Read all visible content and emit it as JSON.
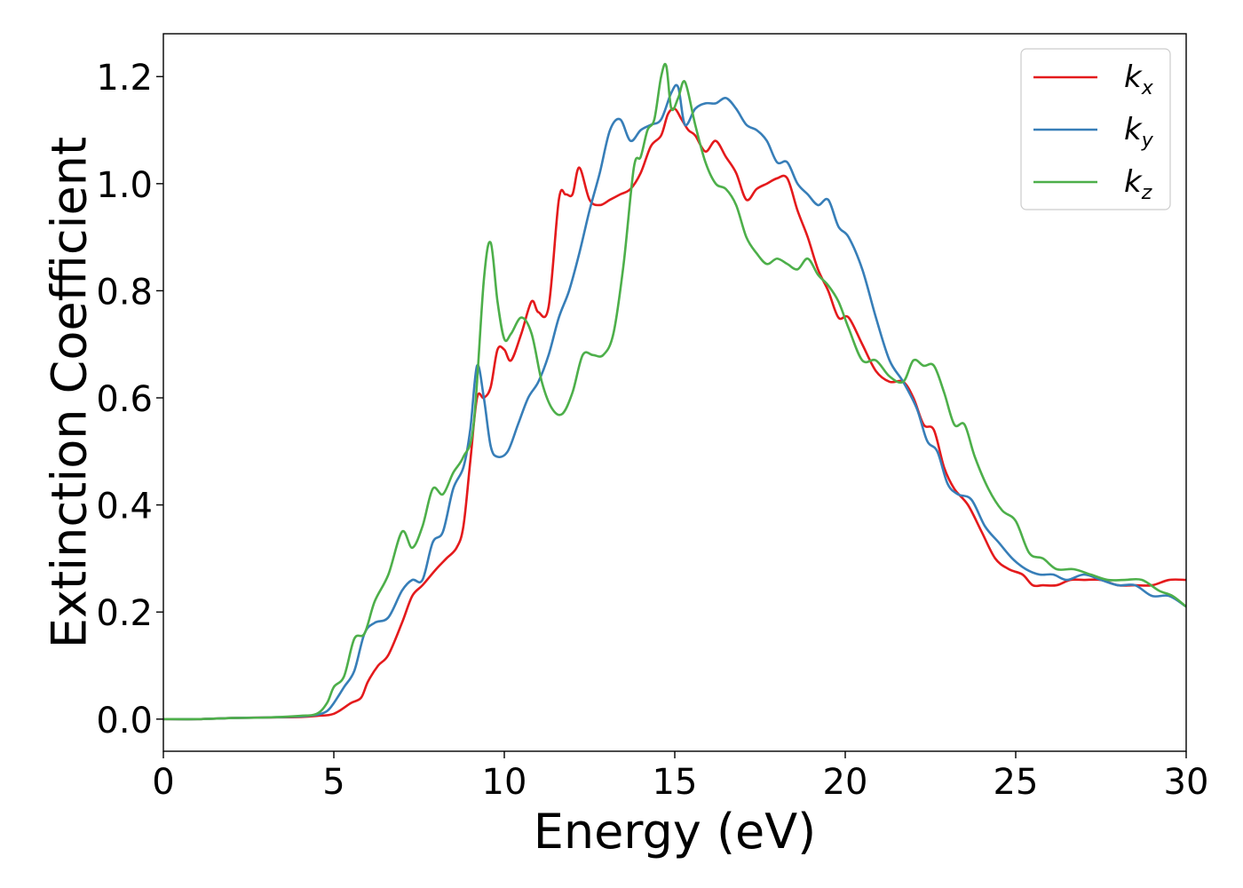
{
  "chart_data": {
    "type": "line",
    "xlabel": "Energy (eV)",
    "ylabel": "Extinction Coefficient",
    "xlim": [
      0,
      30
    ],
    "ylim": [
      -0.06,
      1.28
    ],
    "xticks": [
      0,
      5,
      10,
      15,
      20,
      25,
      30
    ],
    "yticks": [
      0.0,
      0.2,
      0.4,
      0.6,
      0.8,
      1.0,
      1.2
    ],
    "xtick_labels": [
      "0",
      "5",
      "10",
      "15",
      "20",
      "25",
      "30"
    ],
    "ytick_labels": [
      "0.0",
      "0.2",
      "0.4",
      "0.6",
      "0.8",
      "1.0",
      "1.2"
    ],
    "grid": false,
    "legend_position": "top-right",
    "series": [
      {
        "name": "k",
        "subscript": "x",
        "color": "#e41a1c",
        "x": [
          0,
          1,
          2,
          3,
          4,
          4.5,
          5,
          5.5,
          5.8,
          6,
          6.3,
          6.6,
          7,
          7.3,
          7.6,
          8,
          8.3,
          8.6,
          8.8,
          9,
          9.2,
          9.4,
          9.6,
          9.8,
          10,
          10.2,
          10.5,
          10.8,
          11,
          11.3,
          11.6,
          11.8,
          12,
          12.2,
          12.5,
          12.8,
          13.1,
          13.4,
          13.7,
          14,
          14.3,
          14.6,
          14.8,
          15,
          15.2,
          15.4,
          15.6,
          15.9,
          16.2,
          16.5,
          16.8,
          17.1,
          17.4,
          17.7,
          18,
          18.3,
          18.6,
          18.9,
          19.2,
          19.5,
          19.8,
          20.1,
          20.5,
          20.9,
          21.3,
          21.7,
          22,
          22.3,
          22.6,
          22.9,
          23.2,
          23.6,
          24,
          24.4,
          24.8,
          25.2,
          25.5,
          25.8,
          26.2,
          26.6,
          27,
          27.5,
          28,
          28.5,
          29,
          29.5,
          30
        ],
        "y": [
          0.0,
          0.0,
          0.002,
          0.003,
          0.004,
          0.006,
          0.01,
          0.03,
          0.04,
          0.07,
          0.1,
          0.12,
          0.18,
          0.23,
          0.25,
          0.28,
          0.3,
          0.32,
          0.36,
          0.48,
          0.6,
          0.6,
          0.62,
          0.69,
          0.69,
          0.67,
          0.72,
          0.78,
          0.76,
          0.77,
          0.97,
          0.98,
          0.98,
          1.03,
          0.97,
          0.96,
          0.97,
          0.98,
          0.99,
          1.02,
          1.07,
          1.09,
          1.13,
          1.14,
          1.12,
          1.1,
          1.09,
          1.06,
          1.08,
          1.05,
          1.02,
          0.97,
          0.99,
          1.0,
          1.01,
          1.01,
          0.95,
          0.9,
          0.84,
          0.8,
          0.75,
          0.75,
          0.7,
          0.65,
          0.63,
          0.63,
          0.6,
          0.55,
          0.54,
          0.47,
          0.43,
          0.4,
          0.35,
          0.3,
          0.28,
          0.27,
          0.25,
          0.25,
          0.25,
          0.26,
          0.26,
          0.26,
          0.25,
          0.25,
          0.25,
          0.26,
          0.26
        ]
      },
      {
        "name": "k",
        "subscript": "y",
        "color": "#377eb8",
        "x": [
          0,
          1,
          2,
          3,
          4,
          4.5,
          4.8,
          5,
          5.3,
          5.6,
          5.9,
          6.2,
          6.6,
          7,
          7.3,
          7.6,
          7.9,
          8.2,
          8.5,
          8.8,
          9.0,
          9.2,
          9.4,
          9.6,
          9.8,
          10.1,
          10.4,
          10.7,
          11.0,
          11.3,
          11.6,
          11.9,
          12.2,
          12.5,
          12.8,
          13.1,
          13.4,
          13.7,
          14.0,
          14.3,
          14.6,
          14.9,
          15.1,
          15.3,
          15.6,
          15.9,
          16.2,
          16.5,
          16.8,
          17.1,
          17.4,
          17.7,
          18.0,
          18.3,
          18.6,
          18.9,
          19.2,
          19.5,
          19.8,
          20.1,
          20.5,
          20.9,
          21.3,
          21.7,
          22.1,
          22.4,
          22.7,
          23.0,
          23.3,
          23.7,
          24.1,
          24.5,
          24.9,
          25.3,
          25.7,
          26.1,
          26.5,
          27.0,
          27.5,
          28.0,
          28.5,
          29.0,
          29.5,
          30
        ],
        "y": [
          0.0,
          0.0,
          0.002,
          0.003,
          0.005,
          0.008,
          0.015,
          0.03,
          0.06,
          0.09,
          0.16,
          0.18,
          0.19,
          0.24,
          0.26,
          0.26,
          0.33,
          0.35,
          0.43,
          0.47,
          0.54,
          0.66,
          0.6,
          0.51,
          0.49,
          0.5,
          0.55,
          0.6,
          0.63,
          0.68,
          0.75,
          0.8,
          0.87,
          0.95,
          1.02,
          1.1,
          1.12,
          1.08,
          1.1,
          1.11,
          1.12,
          1.17,
          1.18,
          1.11,
          1.14,
          1.15,
          1.15,
          1.16,
          1.14,
          1.11,
          1.1,
          1.08,
          1.04,
          1.04,
          1.0,
          0.98,
          0.96,
          0.97,
          0.92,
          0.9,
          0.84,
          0.75,
          0.67,
          0.63,
          0.58,
          0.52,
          0.5,
          0.44,
          0.42,
          0.41,
          0.36,
          0.33,
          0.3,
          0.28,
          0.27,
          0.27,
          0.26,
          0.27,
          0.26,
          0.25,
          0.25,
          0.23,
          0.23,
          0.21
        ]
      },
      {
        "name": "k",
        "subscript": "z",
        "color": "#4daf4a",
        "x": [
          0,
          1,
          2,
          3,
          4,
          4.5,
          4.8,
          5.0,
          5.3,
          5.6,
          5.9,
          6.2,
          6.6,
          7.0,
          7.3,
          7.6,
          7.9,
          8.2,
          8.5,
          8.8,
          9.1,
          9.4,
          9.6,
          9.8,
          10.0,
          10.2,
          10.5,
          10.8,
          11.1,
          11.4,
          11.7,
          12.0,
          12.3,
          12.6,
          12.9,
          13.2,
          13.5,
          13.8,
          14.0,
          14.2,
          14.4,
          14.6,
          14.75,
          14.9,
          15.1,
          15.3,
          15.6,
          15.9,
          16.2,
          16.5,
          16.8,
          17.1,
          17.4,
          17.7,
          18.0,
          18.3,
          18.6,
          18.9,
          19.2,
          19.5,
          19.8,
          20.1,
          20.5,
          20.9,
          21.3,
          21.7,
          22.0,
          22.3,
          22.6,
          22.9,
          23.2,
          23.5,
          23.8,
          24.2,
          24.6,
          25.0,
          25.4,
          25.8,
          26.2,
          26.7,
          27.2,
          27.7,
          28.2,
          28.7,
          29.2,
          29.6,
          30
        ],
        "y": [
          0.0,
          0.0,
          0.002,
          0.003,
          0.006,
          0.01,
          0.03,
          0.06,
          0.08,
          0.15,
          0.16,
          0.22,
          0.27,
          0.35,
          0.32,
          0.36,
          0.43,
          0.42,
          0.46,
          0.49,
          0.55,
          0.82,
          0.89,
          0.78,
          0.71,
          0.72,
          0.75,
          0.72,
          0.63,
          0.58,
          0.57,
          0.61,
          0.68,
          0.68,
          0.68,
          0.72,
          0.85,
          1.03,
          1.05,
          1.1,
          1.12,
          1.2,
          1.22,
          1.14,
          1.16,
          1.19,
          1.11,
          1.04,
          1.0,
          0.99,
          0.96,
          0.9,
          0.87,
          0.85,
          0.86,
          0.85,
          0.84,
          0.86,
          0.83,
          0.81,
          0.78,
          0.73,
          0.67,
          0.67,
          0.64,
          0.63,
          0.67,
          0.66,
          0.66,
          0.61,
          0.55,
          0.55,
          0.49,
          0.43,
          0.39,
          0.37,
          0.31,
          0.3,
          0.28,
          0.28,
          0.27,
          0.26,
          0.26,
          0.26,
          0.24,
          0.23,
          0.21
        ]
      }
    ]
  }
}
